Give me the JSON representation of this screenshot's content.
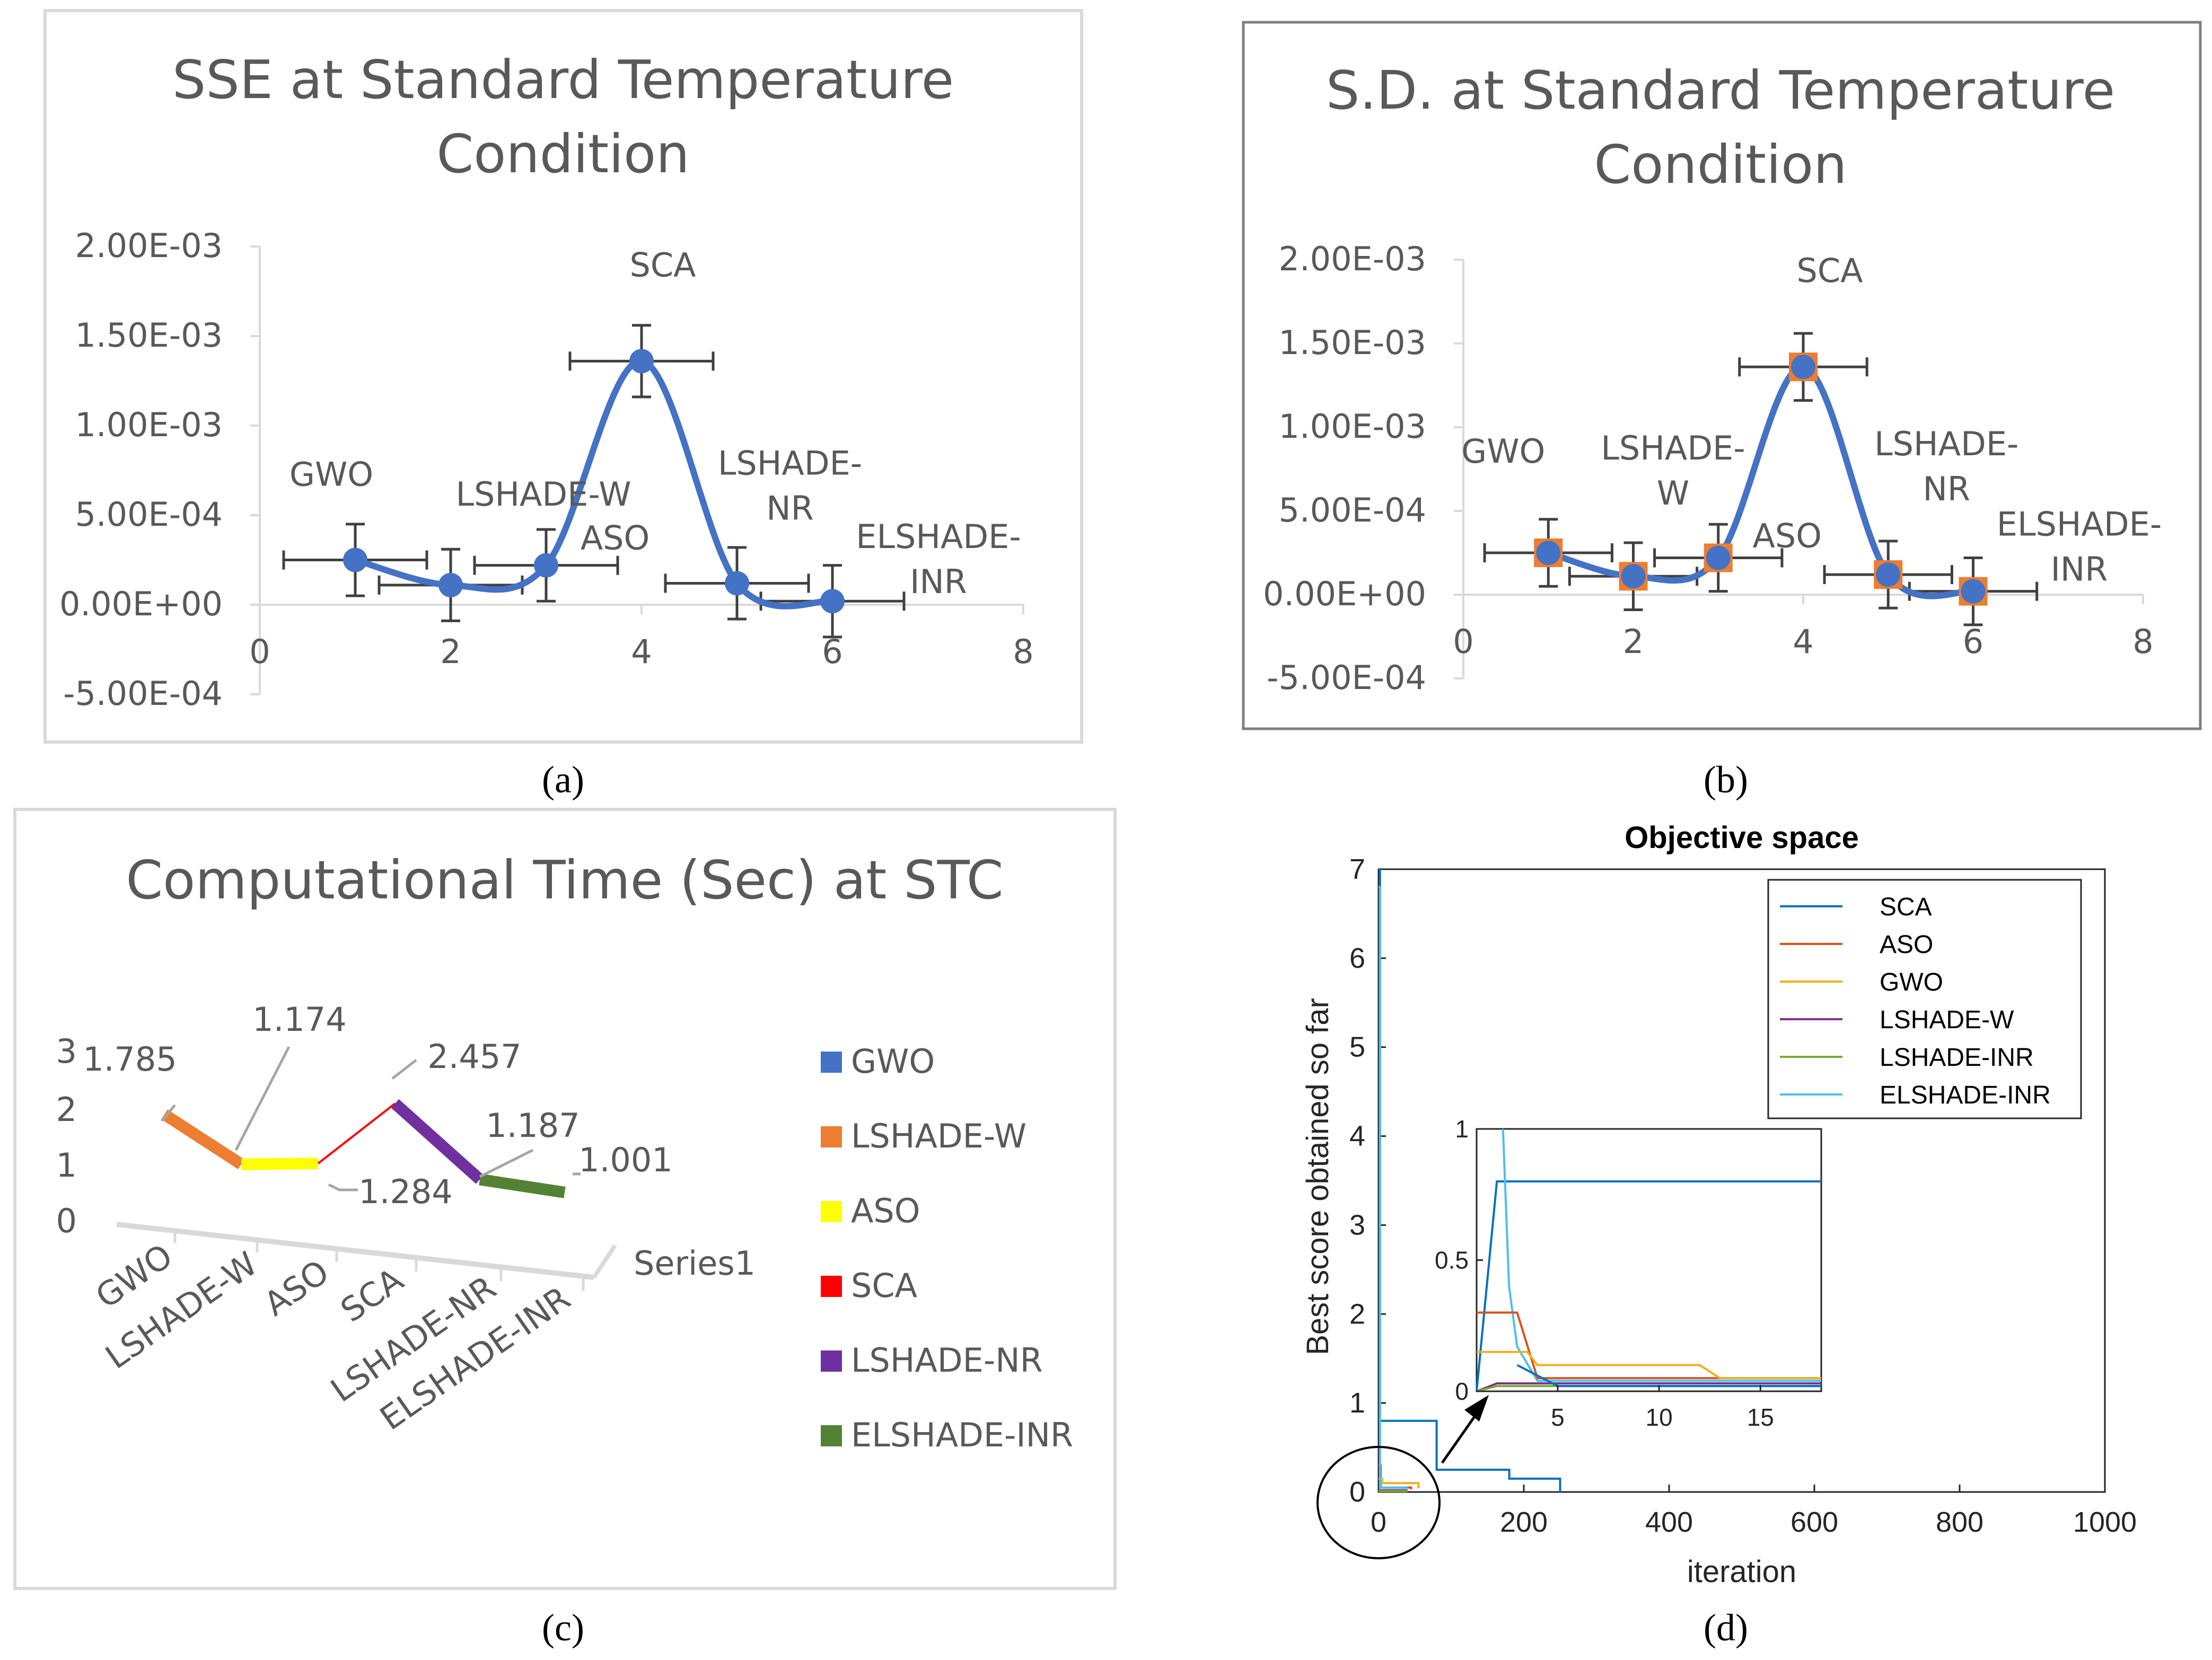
{
  "captions": {
    "a": "(a)",
    "b": "(b)",
    "c": "(c)",
    "d": "(d)"
  },
  "colors": {
    "line_blue": "#4472C4",
    "marker_orange": "#ED7D31",
    "grid_gray": "#D9D9D9",
    "err_gray": "#404040",
    "text_gray": "#595959"
  },
  "chart_data": [
    {
      "id": "a",
      "type": "scatter",
      "title": "SSE at Standard Temperature Condition",
      "title_lines": [
        "SSE at Standard Temperature",
        "Condition"
      ],
      "xlim": [
        0,
        8
      ],
      "ylim": [
        -0.0005,
        0.002
      ],
      "xticks": [
        0,
        2,
        4,
        6,
        8
      ],
      "yticks": [
        -0.0005,
        0,
        0.0005,
        0.001,
        0.0015,
        0.002
      ],
      "ytick_labels": [
        "-5.00E-04",
        "0.00E+00",
        "5.00E-04",
        "1.00E-03",
        "1.50E-03",
        "2.00E-03"
      ],
      "x": [
        1,
        2,
        3,
        4,
        5,
        6
      ],
      "y": [
        0.00025,
        0.00011,
        0.00022,
        0.00136,
        0.00012,
        2e-05
      ],
      "yerr": [
        0.0002,
        0.0002,
        0.0002,
        0.0002,
        0.0002,
        0.0002
      ],
      "xerr": [
        0.75,
        0.75,
        0.75,
        0.75,
        0.75,
        0.75
      ],
      "point_labels": [
        {
          "lines": [
            "GWO"
          ]
        },
        {
          "lines": [
            "LSHADE-W"
          ]
        },
        {
          "lines": [
            "ASO"
          ]
        },
        {
          "lines": [
            "SCA"
          ]
        },
        {
          "lines": [
            "LSHADE-",
            "NR"
          ]
        },
        {
          "lines": [
            "ELSHADE-",
            "INR"
          ]
        }
      ],
      "marker": "circle"
    },
    {
      "id": "b",
      "type": "scatter",
      "title": "S.D. at Standard Temperature Condition",
      "title_lines": [
        "S.D. at Standard Temperature",
        "Condition"
      ],
      "xlim": [
        0,
        8
      ],
      "ylim": [
        -0.0005,
        0.002
      ],
      "xticks": [
        0,
        2,
        4,
        6,
        8
      ],
      "yticks": [
        -0.0005,
        0,
        0.0005,
        0.001,
        0.0015,
        0.002
      ],
      "ytick_labels": [
        "-5.00E-04",
        "0.00E+00",
        "5.00E-04",
        "1.00E-03",
        "1.50E-03",
        "2.00E-03"
      ],
      "x": [
        1,
        2,
        3,
        4,
        5,
        6
      ],
      "y": [
        0.00025,
        0.00011,
        0.00022,
        0.00136,
        0.00012,
        2e-05
      ],
      "yerr": [
        0.0002,
        0.0002,
        0.0002,
        0.0002,
        0.0002,
        0.0002
      ],
      "xerr": [
        0.75,
        0.75,
        0.75,
        0.75,
        0.75,
        0.75
      ],
      "point_labels": [
        {
          "lines": [
            "GWO"
          ]
        },
        {
          "lines": [
            "LSHADE-",
            "W"
          ]
        },
        {
          "lines": [
            "ASO"
          ]
        },
        {
          "lines": [
            "SCA"
          ]
        },
        {
          "lines": [
            "LSHADE-",
            "NR"
          ]
        },
        {
          "lines": [
            "ELSHADE-",
            "INR"
          ]
        }
      ],
      "marker": "square+circle"
    },
    {
      "id": "c",
      "type": "line",
      "title": "Computational Time (Sec) at STC",
      "categories": [
        "GWO",
        "LSHADE-W",
        "ASO",
        "SCA",
        "LSHADE-NR",
        "ELSHADE-INR"
      ],
      "values": [
        1.785,
        1.174,
        1.284,
        2.457,
        1.187,
        1.001
      ],
      "value_labels": [
        "1.785",
        "1.174",
        "1.284",
        "2.457",
        "1.187",
        "1.001"
      ],
      "yticks": [
        "0",
        "1",
        "2",
        "3"
      ],
      "series_axis_label": "Series1",
      "legend": [
        "GWO",
        "LSHADE-W",
        "ASO",
        "SCA",
        "LSHADE-NR",
        "ELSHADE-INR"
      ],
      "segment_colors": [
        "#ED7D31",
        "#FFFF00",
        "#FF0000",
        "#7030A0",
        "#548235"
      ],
      "legend_colors": [
        "#4472C4",
        "#ED7D31",
        "#FFFF00",
        "#FF0000",
        "#7030A0",
        "#548235"
      ]
    },
    {
      "id": "d",
      "type": "line",
      "title": "Objective space",
      "xlabel": "iteration",
      "ylabel": "Best score obtained so far",
      "xlim": [
        0,
        1000
      ],
      "ylim": [
        0,
        7
      ],
      "xticks": [
        "0",
        "200",
        "400",
        "600",
        "800",
        "1000"
      ],
      "yticks": [
        "0",
        "1",
        "2",
        "3",
        "4",
        "5",
        "6",
        "7"
      ],
      "series": [
        {
          "name": "SCA",
          "color": "#0072BD",
          "x": [
            0,
            2,
            2,
            80,
            80,
            180,
            180,
            250,
            250
          ],
          "y": [
            7,
            7,
            0.8,
            0.8,
            0.25,
            0.25,
            0.15,
            0.15,
            0
          ]
        },
        {
          "name": "ASO",
          "color": "#D95319",
          "x": [
            0,
            3,
            3,
            45,
            45
          ],
          "y": [
            0.3,
            0.3,
            0.05,
            0.05,
            0.03
          ]
        },
        {
          "name": "GWO",
          "color": "#EDB120",
          "x": [
            0,
            5,
            5,
            55,
            55
          ],
          "y": [
            0.15,
            0.15,
            0.1,
            0.1,
            0.04
          ]
        },
        {
          "name": "LSHADE-W",
          "color": "#7E2F8E",
          "x": [
            0,
            40
          ],
          "y": [
            0.02,
            0.02
          ]
        },
        {
          "name": "LSHADE-INR",
          "color": "#77AC30",
          "x": [
            0,
            40
          ],
          "y": [
            0.01,
            0.01
          ]
        },
        {
          "name": "ELSHADE-INR",
          "color": "#4DBEEE",
          "x": [
            0,
            2,
            2,
            40
          ],
          "y": [
            6.8,
            6.8,
            0.05,
            0.05
          ]
        }
      ],
      "legend": [
        "SCA",
        "ASO",
        "GWO",
        "LSHADE-W",
        "LSHADE-INR",
        "ELSHADE-INR"
      ],
      "inset": {
        "xlim": [
          1,
          18
        ],
        "ylim": [
          0,
          1
        ],
        "xticks": [
          "5",
          "10",
          "15"
        ],
        "yticks": [
          "0",
          "0.5",
          "1"
        ],
        "series": [
          {
            "name": "SCA",
            "color": "#0072BD",
            "x": [
              1,
              2,
              2.5,
              18
            ],
            "y": [
              0,
              0.8,
              0.8,
              0.8
            ]
          },
          {
            "name": "ELSHADE-INR",
            "color": "#4DBEEE",
            "x": [
              2.3,
              2.6,
              3,
              3,
              4,
              18
            ],
            "y": [
              1.0,
              0.4,
              0.17,
              0.17,
              0.04,
              0.04
            ]
          },
          {
            "name": "ASO",
            "color": "#D95319",
            "x": [
              1,
              3,
              4,
              4,
              18
            ],
            "y": [
              0.3,
              0.3,
              0.05,
              0.05,
              0.05
            ]
          },
          {
            "name": "GWO",
            "color": "#EDB120",
            "x": [
              1,
              3,
              3.5,
              4,
              12,
              13,
              18
            ],
            "y": [
              0.15,
              0.15,
              0.15,
              0.1,
              0.1,
              0.05,
              0.05
            ]
          },
          {
            "name": "LSHADE-W",
            "color": "#7E2F8E",
            "x": [
              1,
              2,
              18
            ],
            "y": [
              0,
              0.03,
              0.03
            ]
          },
          {
            "name": "LSHADE-INR",
            "color": "#77AC30",
            "x": [
              1,
              2,
              18
            ],
            "y": [
              0,
              0.02,
              0.02
            ]
          },
          {
            "name": "line7",
            "color": "#0072BD",
            "x": [
              3,
              5,
              18
            ],
            "y": [
              0.1,
              0.02,
              0.02
            ]
          }
        ]
      }
    }
  ]
}
